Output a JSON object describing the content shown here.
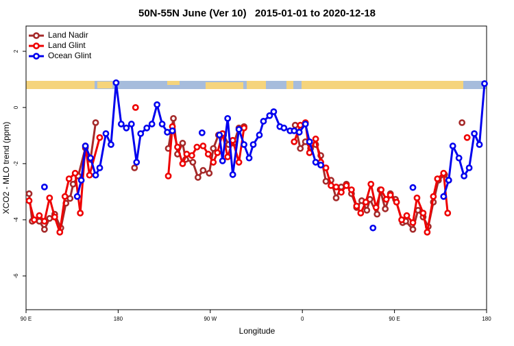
{
  "chart_data": {
    "type": "line",
    "title": "50N-55N June (Ver 10)   2015-01-01 to 2020-12-18",
    "xlabel": "Longitude",
    "ylabel": "XCO2 - MLO trend (ppm)",
    "xlim": [
      90,
      540
    ],
    "xticks": [
      {
        "value": 90,
        "label": "90 E"
      },
      180,
      {
        "value": 270,
        "label": "90 W"
      },
      {
        "value": 360,
        "label": "0"
      },
      {
        "value": 450,
        "label": "90 E"
      },
      {
        "value": 540,
        "label": "180"
      }
    ],
    "ylim": [
      -7.2,
      2.9
    ],
    "yticks": [
      -6,
      -4,
      -2,
      0,
      2
    ],
    "legend": "top-left",
    "series": [
      {
        "name": "Land Nadir",
        "color": "#a52a2a",
        "x": [
          93,
          96,
          103,
          108,
          113,
          118,
          124,
          129,
          133,
          136,
          141,
          148,
          153,
          158,
          null,
          196,
          null,
          229,
          234,
          238,
          243,
          246,
          253,
          258,
          263,
          269,
          273,
          278,
          283,
          288,
          293,
          298,
          303,
          null,
          353,
          358,
          363,
          368,
          373,
          378,
          383,
          388,
          393,
          398,
          403,
          408,
          413,
          418,
          423,
          426,
          433,
          436,
          441,
          446,
          451,
          458,
          461,
          468,
          473,
          478,
          483,
          488,
          493,
          499,
          503,
          null,
          516
        ],
        "values": [
          -3.07,
          -4.05,
          -4.05,
          -4.34,
          -3.95,
          -3.8,
          -4.29,
          -3.41,
          -3.24,
          -2.73,
          -2.44,
          -1.44,
          -1.85,
          -0.54,
          null,
          -2.15,
          null,
          -1.46,
          -0.39,
          -1.66,
          -1.27,
          -1.85,
          -1.95,
          -2.49,
          -2.24,
          -2.34,
          -1.46,
          -0.98,
          -0.98,
          -1.32,
          -1.27,
          -0.73,
          -0.68,
          null,
          -0.63,
          -1.46,
          -1.22,
          -1.46,
          -1.32,
          -1.71,
          -2.63,
          -2.59,
          -3.22,
          -2.83,
          -2.73,
          -3.07,
          -3.56,
          -3.32,
          -3.66,
          -3.27,
          -3.8,
          -2.93,
          -3.61,
          -3.07,
          -3.27,
          -4.1,
          -4.05,
          -4.34,
          -3.66,
          -3.9,
          -4.24,
          -3.37,
          -2.59,
          -2.39,
          -2.59,
          null,
          -0.54
        ]
      },
      {
        "name": "Land Glint",
        "color": "#ee0000",
        "x": [
          93,
          98,
          103,
          108,
          113,
          118,
          123,
          128,
          132,
          138,
          143,
          148,
          152,
          162,
          null,
          197,
          null,
          229,
          233,
          238,
          243,
          247,
          252,
          257,
          263,
          268,
          273,
          277,
          282,
          287,
          292,
          298,
          303,
          null,
          352,
          358,
          363,
          367,
          373,
          378,
          383,
          388,
          393,
          398,
          403,
          408,
          413,
          417,
          422,
          427,
          432,
          437,
          442,
          446,
          452,
          457,
          462,
          468,
          472,
          478,
          482,
          488,
          492,
          498,
          502,
          null,
          521
        ],
        "values": [
          -3.32,
          -4.0,
          -3.85,
          -4.05,
          -3.22,
          -3.9,
          -4.44,
          -3.17,
          -2.54,
          -2.34,
          -3.76,
          -1.37,
          -2.41,
          -1.07,
          null,
          0.0,
          null,
          -2.44,
          -0.68,
          -1.41,
          -2.0,
          -1.66,
          -1.71,
          -1.41,
          -1.37,
          -1.66,
          -1.95,
          -1.61,
          -0.93,
          -1.76,
          -1.17,
          -1.95,
          -0.73,
          null,
          -1.22,
          -0.63,
          -0.54,
          -1.61,
          -1.12,
          -1.95,
          -2.15,
          -2.78,
          -2.83,
          -3.02,
          -2.78,
          -2.93,
          -3.51,
          -3.76,
          -3.37,
          -2.73,
          -3.56,
          -2.93,
          -3.27,
          -3.12,
          -3.37,
          -4.0,
          -3.85,
          -4.1,
          -3.22,
          -3.76,
          -4.44,
          -3.17,
          -2.54,
          -2.34,
          -3.76,
          null,
          -1.07
        ]
      },
      {
        "name": "Ocean Glint",
        "color": "#0000ee",
        "x": [
          108,
          null,
          140,
          144,
          148,
          153,
          158,
          162,
          168,
          173,
          178,
          183,
          188,
          193,
          198,
          202,
          208,
          213,
          218,
          223,
          228,
          233,
          null,
          262,
          null,
          279,
          282,
          287,
          292,
          298,
          303,
          308,
          312,
          318,
          322,
          328,
          332,
          338,
          342,
          348,
          352,
          357,
          363,
          367,
          373,
          378,
          null,
          429,
          null,
          468,
          null,
          498,
          503,
          507,
          513,
          518,
          523,
          528,
          533,
          538
        ],
        "values": [
          -2.83,
          null,
          -3.17,
          -2.59,
          -1.37,
          -1.8,
          -2.41,
          -2.15,
          -0.93,
          -1.32,
          0.88,
          -0.59,
          -0.73,
          -0.59,
          -1.95,
          -0.93,
          -0.73,
          -0.59,
          0.1,
          -0.59,
          -0.88,
          -0.83,
          null,
          -0.9,
          null,
          -0.98,
          -1.9,
          -0.39,
          -2.39,
          -0.78,
          -1.32,
          -1.8,
          -1.32,
          -0.98,
          -0.49,
          -0.29,
          -0.15,
          -0.68,
          -0.73,
          -0.83,
          -0.83,
          -0.88,
          -0.59,
          -1.22,
          -1.95,
          -2.05,
          null,
          -4.29,
          null,
          -2.85,
          null,
          -3.17,
          -2.59,
          -1.37,
          -1.8,
          -2.44,
          -2.15,
          -0.93,
          -1.32,
          0.85
        ]
      }
    ]
  }
}
